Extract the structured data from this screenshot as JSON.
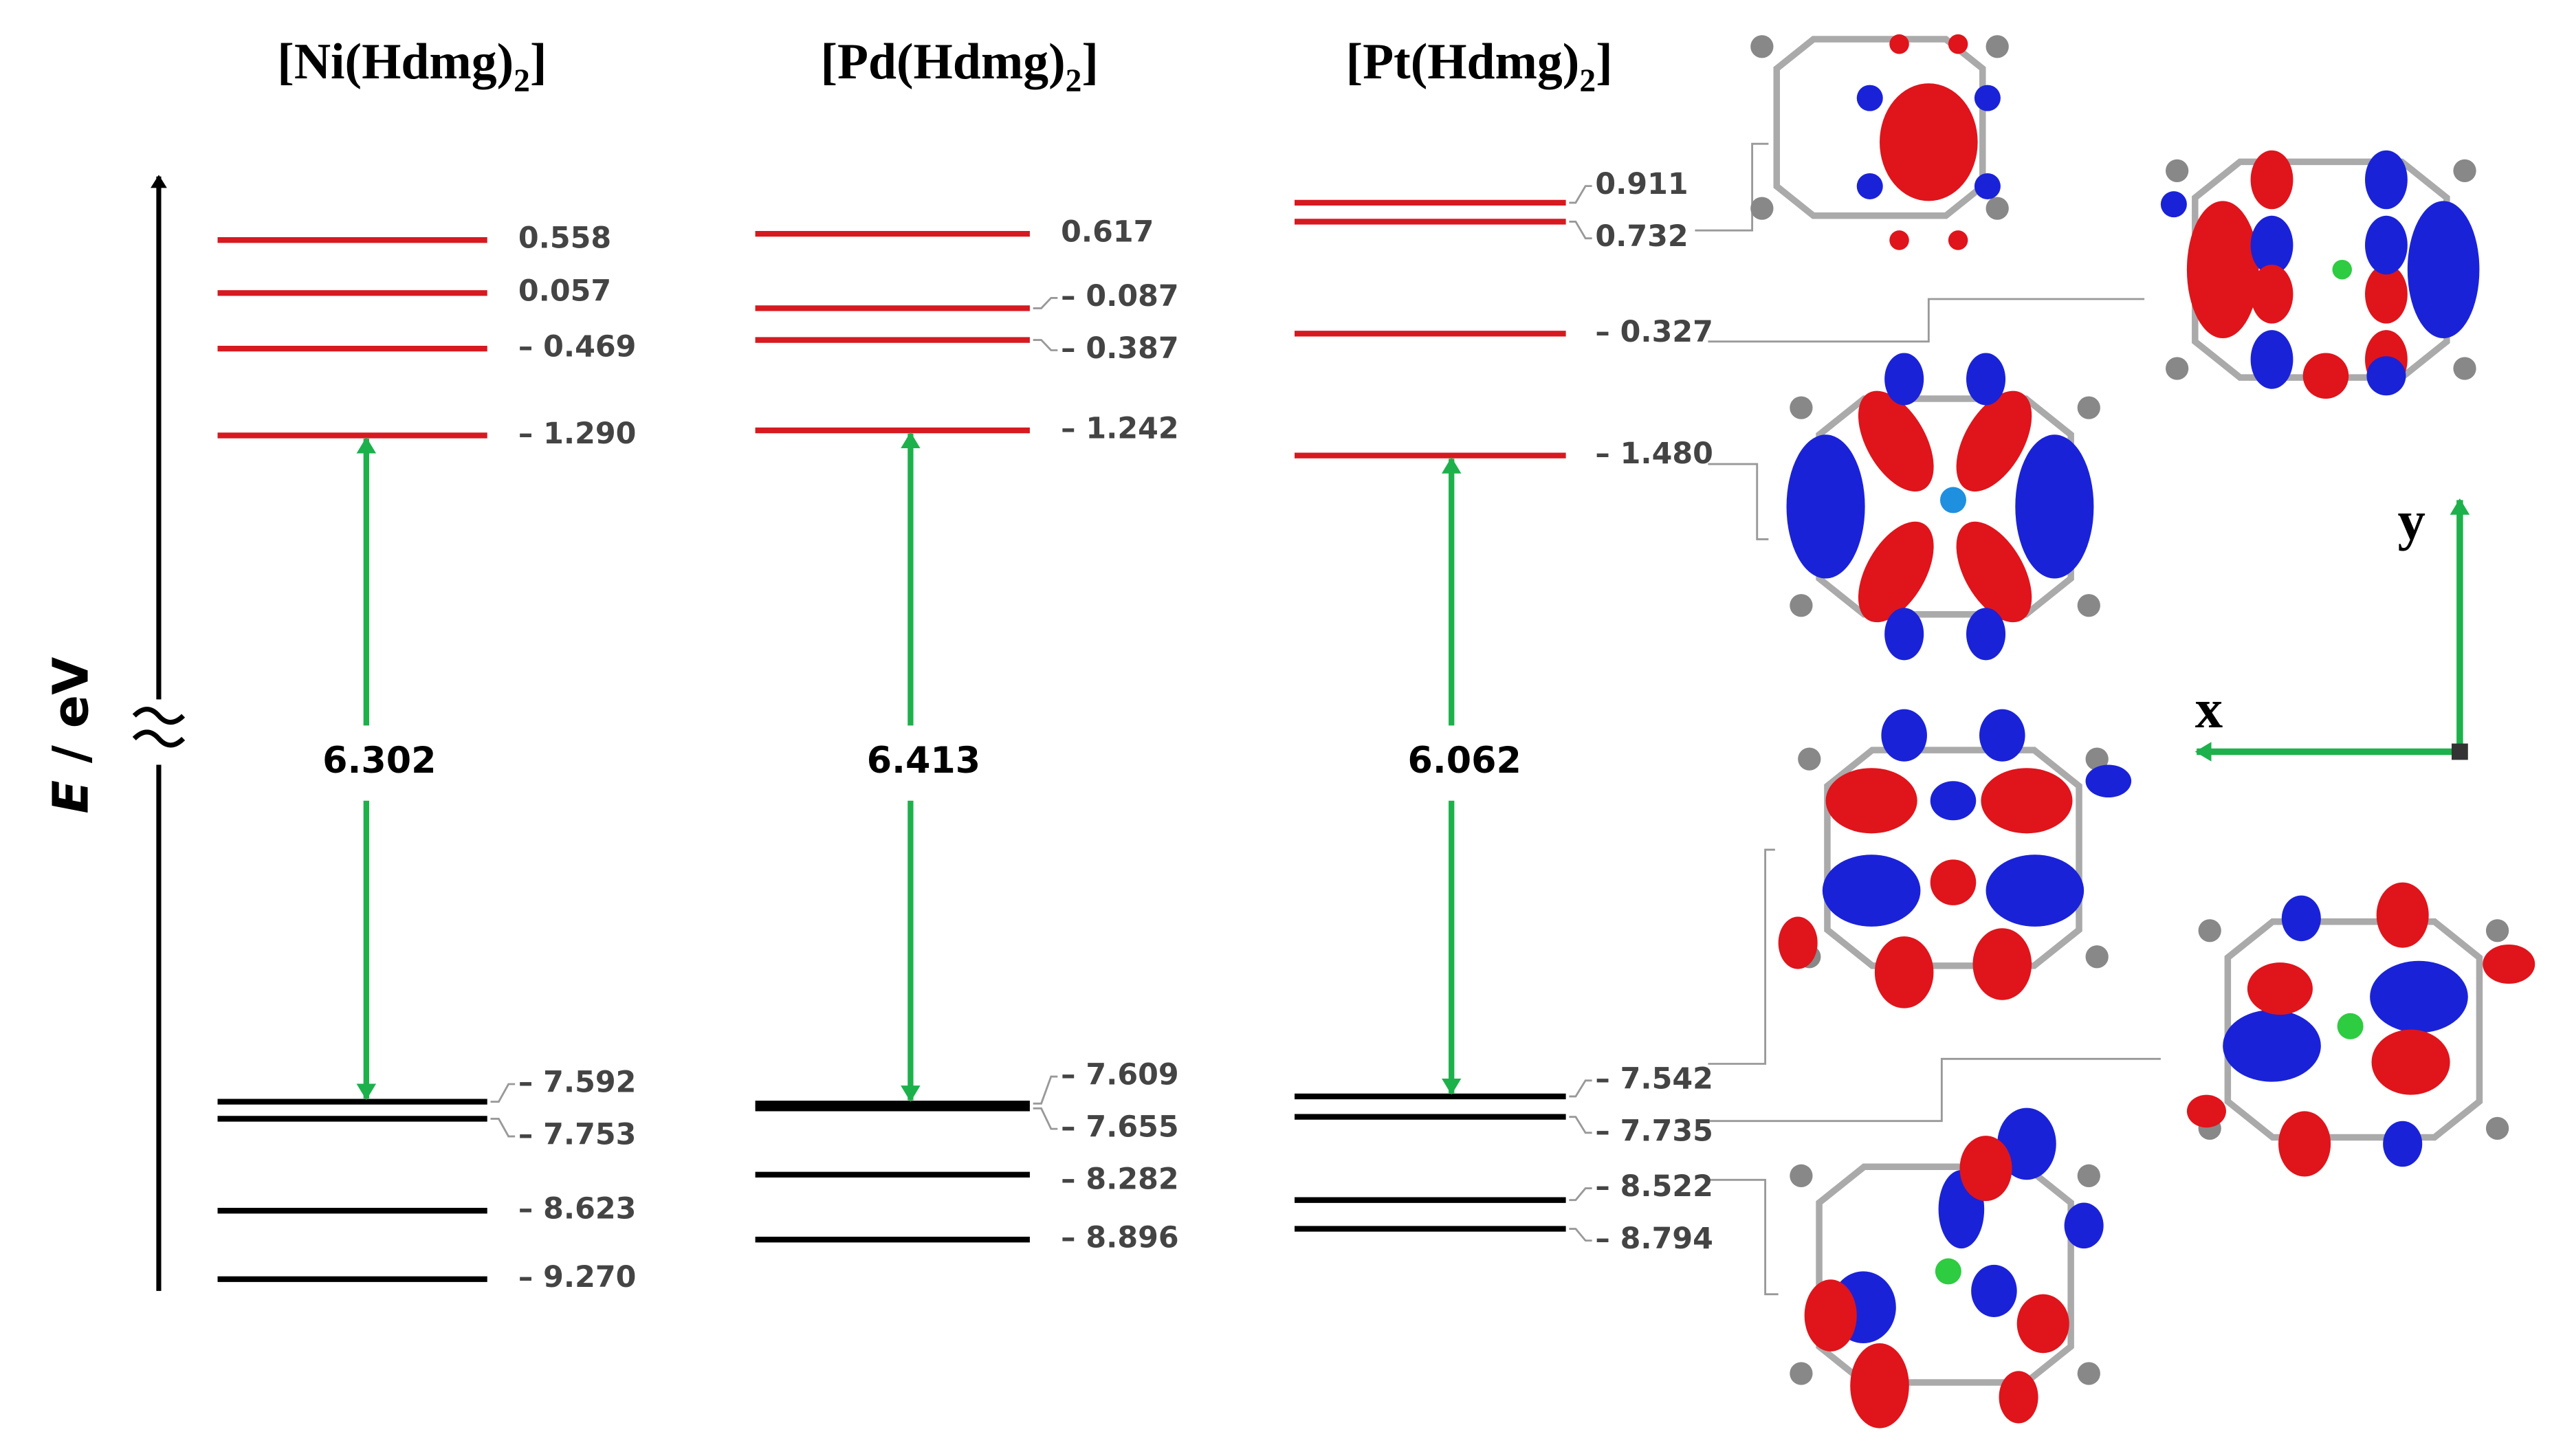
{
  "columns": [
    {
      "title": {
        "text": "[Ni(Hdmg)",
        "sub": "2",
        "close": "]"
      },
      "unoccupied": [
        {
          "energy": 0.558,
          "label": "0.558"
        },
        {
          "energy": 0.057,
          "label": "0.057"
        },
        {
          "energy": -0.469,
          "label": "– 0.469"
        },
        {
          "energy": -1.29,
          "label": "– 1.290"
        }
      ],
      "occupied": [
        {
          "energy": -7.592,
          "label": "– 7.592"
        },
        {
          "energy": -7.753,
          "label": "– 7.753"
        },
        {
          "energy": -8.623,
          "label": "– 8.623"
        },
        {
          "energy": -9.27,
          "label": "– 9.270"
        }
      ],
      "gap": 6.302
    },
    {
      "title": {
        "text": "[Pd(Hdmg)",
        "sub": "2",
        "close": "]"
      },
      "unoccupied": [
        {
          "energy": 0.617,
          "label": "0.617"
        },
        {
          "energy": -0.087,
          "label": "– 0.087"
        },
        {
          "energy": -0.387,
          "label": "– 0.387"
        },
        {
          "energy": -1.242,
          "label": "– 1.242"
        }
      ],
      "occupied": [
        {
          "energy": -7.655,
          "label": "– 7.655"
        },
        {
          "energy": -7.609,
          "label": "– 7.609"
        },
        {
          "energy": -8.282,
          "label": "– 8.282"
        },
        {
          "energy": -8.896,
          "label": "– 8.896"
        }
      ],
      "gap": 6.413
    },
    {
      "title": {
        "text": "[Pt(Hdmg)",
        "sub": "2",
        "close": "]"
      },
      "unoccupied": [
        {
          "energy": 0.911,
          "label": "0.911"
        },
        {
          "energy": 0.732,
          "label": "0.732"
        },
        {
          "energy": -0.327,
          "label": "– 0.327"
        },
        {
          "energy": -1.48,
          "label": "– 1.480"
        }
      ],
      "occupied": [
        {
          "energy": -7.542,
          "label": "– 7.542"
        },
        {
          "energy": -7.735,
          "label": "– 7.735"
        },
        {
          "energy": -8.522,
          "label": "– 8.522"
        },
        {
          "energy": -8.794,
          "label": "– 8.794"
        }
      ],
      "gap": 6.062
    }
  ],
  "axis_label": {
    "symbol": "E",
    "unit": " / eV"
  },
  "frame_axes": {
    "x": "x",
    "y": "y"
  }
}
